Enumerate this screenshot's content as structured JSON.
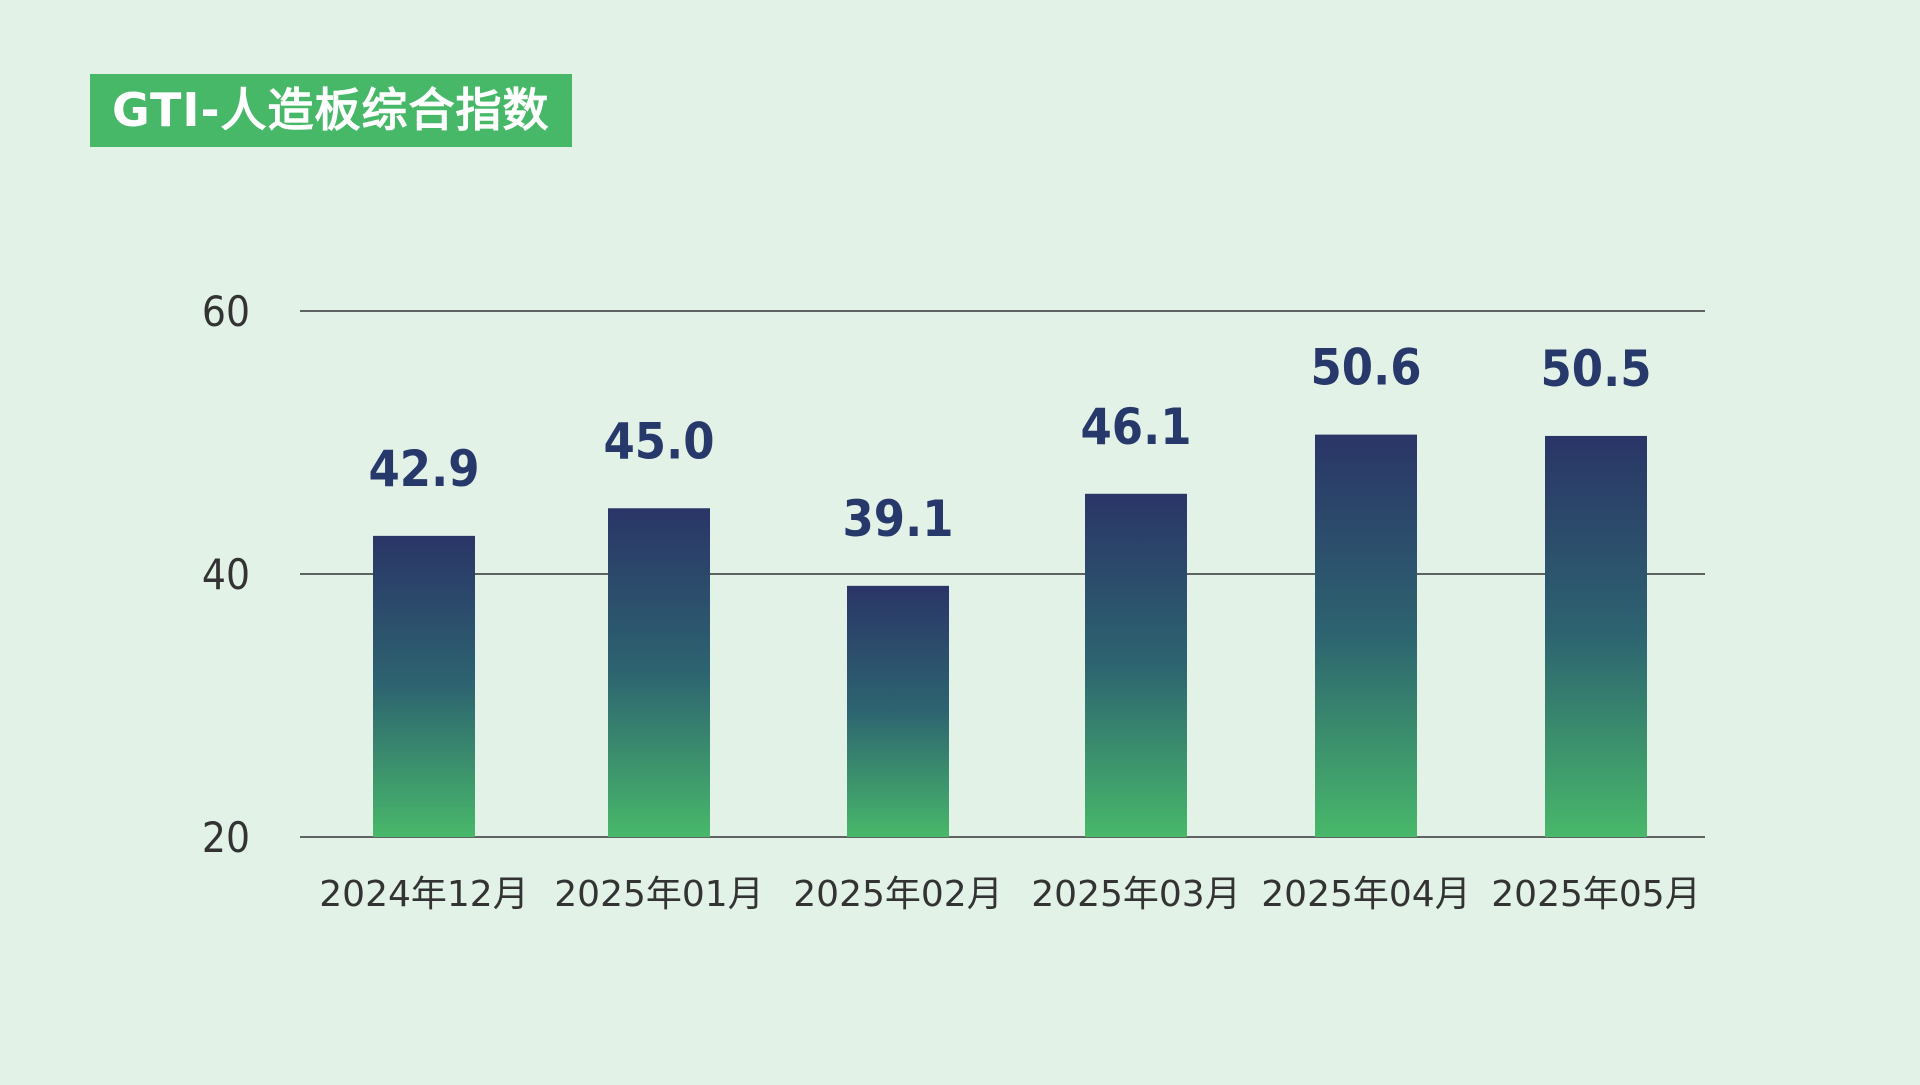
{
  "title": "GTI-人造板综合指数",
  "colors": {
    "background": "#e2f2e7",
    "title_badge": "#46b868",
    "bar_top": "#2a3567",
    "bar_bottom": "#48b86a",
    "data_label": "#27386b"
  },
  "chart_data": {
    "type": "bar",
    "categories": [
      "2024年12月",
      "2025年01月",
      "2025年02月",
      "2025年03月",
      "2025年04月",
      "2025年05月"
    ],
    "values": [
      42.9,
      45.0,
      39.1,
      46.1,
      50.6,
      50.5
    ],
    "value_labels": [
      "42.9",
      "45.0",
      "39.1",
      "46.1",
      "50.6",
      "50.5"
    ],
    "title": "GTI-人造板综合指数",
    "xlabel": "",
    "ylabel": "",
    "ylim": [
      20,
      60
    ],
    "yticks": [
      20,
      40,
      60
    ],
    "grid": true,
    "legend": "none"
  }
}
